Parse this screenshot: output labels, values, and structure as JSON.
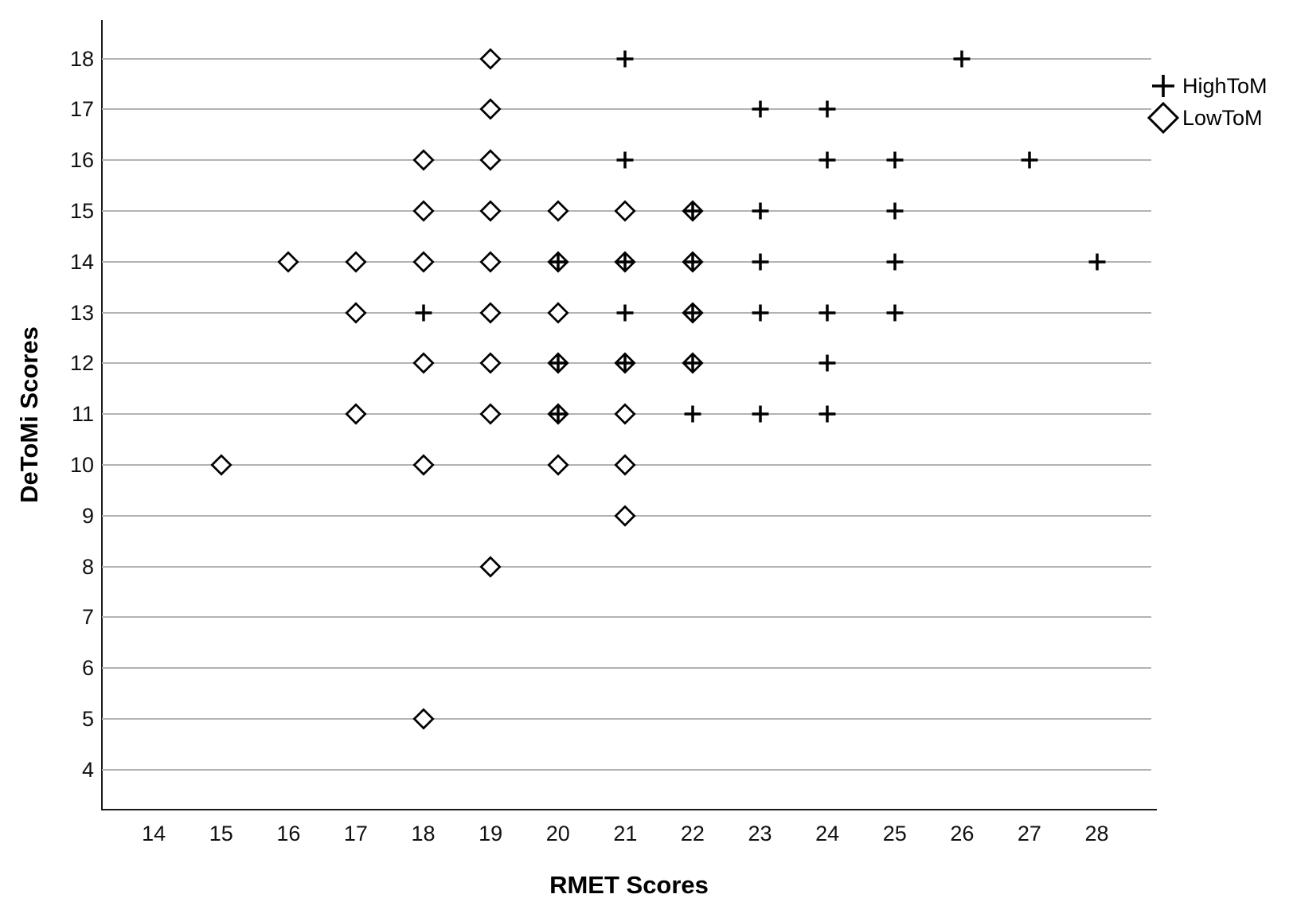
{
  "chart_data": {
    "type": "scatter",
    "title": "",
    "xlabel": "RMET Scores",
    "ylabel": "DeToMi Scores",
    "xlim": [
      13.23,
      28.88
    ],
    "ylim": [
      3.2,
      18.76
    ],
    "x_ticks": [
      14,
      15,
      16,
      17,
      18,
      19,
      20,
      21,
      22,
      23,
      24,
      25,
      26,
      27,
      28
    ],
    "y_ticks": [
      4,
      5,
      6,
      7,
      8,
      9,
      10,
      11,
      12,
      13,
      14,
      15,
      16,
      17,
      18
    ],
    "grid": "horizontal-only",
    "legend_position": "top-right",
    "colors": {
      "marker": "#000000",
      "marker_fill": "#ffffff",
      "gridline": "#b3b3b3",
      "axis": "#1a1a1a",
      "background": "#ffffff"
    },
    "series": [
      {
        "name": "HighToM",
        "marker": "plus",
        "points": [
          [
            21,
            18
          ],
          [
            26,
            18
          ],
          [
            23,
            17
          ],
          [
            24,
            17
          ],
          [
            21,
            16
          ],
          [
            24,
            16
          ],
          [
            25,
            16
          ],
          [
            27,
            16
          ],
          [
            22,
            15
          ],
          [
            23,
            15
          ],
          [
            25,
            15
          ],
          [
            20,
            14
          ],
          [
            21,
            14
          ],
          [
            22,
            14
          ],
          [
            23,
            14
          ],
          [
            25,
            14
          ],
          [
            28,
            14
          ],
          [
            18,
            13
          ],
          [
            21,
            13
          ],
          [
            22,
            13
          ],
          [
            23,
            13
          ],
          [
            24,
            13
          ],
          [
            25,
            13
          ],
          [
            20,
            12
          ],
          [
            21,
            12
          ],
          [
            22,
            12
          ],
          [
            24,
            12
          ],
          [
            20,
            11
          ],
          [
            22,
            11
          ],
          [
            23,
            11
          ],
          [
            24,
            11
          ]
        ]
      },
      {
        "name": "LowToM",
        "marker": "diamond",
        "points": [
          [
            19,
            18
          ],
          [
            19,
            17
          ],
          [
            18,
            16
          ],
          [
            19,
            16
          ],
          [
            18,
            15
          ],
          [
            19,
            15
          ],
          [
            20,
            15
          ],
          [
            21,
            15
          ],
          [
            22,
            15
          ],
          [
            16,
            14
          ],
          [
            17,
            14
          ],
          [
            18,
            14
          ],
          [
            19,
            14
          ],
          [
            20,
            14
          ],
          [
            21,
            14
          ],
          [
            22,
            14
          ],
          [
            17,
            13
          ],
          [
            19,
            13
          ],
          [
            20,
            13
          ],
          [
            22,
            13
          ],
          [
            18,
            12
          ],
          [
            19,
            12
          ],
          [
            20,
            12
          ],
          [
            21,
            12
          ],
          [
            22,
            12
          ],
          [
            17,
            11
          ],
          [
            19,
            11
          ],
          [
            20,
            11
          ],
          [
            21,
            11
          ],
          [
            15,
            10
          ],
          [
            18,
            10
          ],
          [
            20,
            10
          ],
          [
            21,
            10
          ],
          [
            21,
            9
          ],
          [
            19,
            8
          ],
          [
            18,
            5
          ]
        ]
      }
    ]
  }
}
